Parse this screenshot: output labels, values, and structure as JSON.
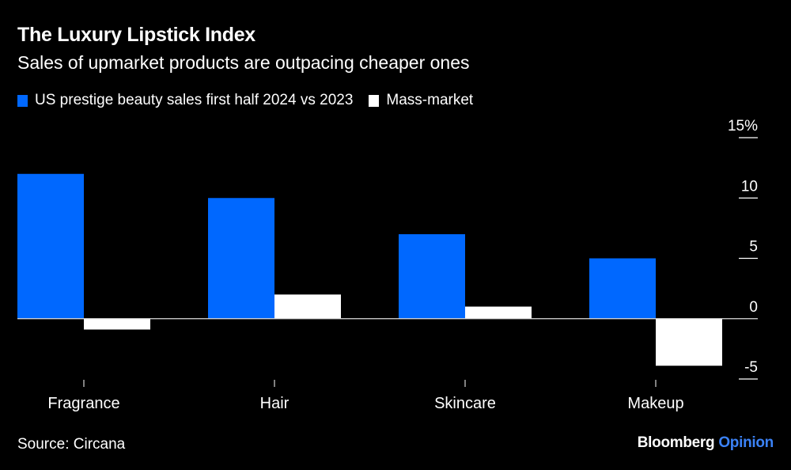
{
  "header": {
    "title": "The Luxury Lipstick Index",
    "subtitle": "Sales of upmarket products are outpacing cheaper ones"
  },
  "footer": {
    "source": "Source: Circana",
    "brand_main": "Bloomberg",
    "brand_accent": "Opinion",
    "brand_accent_color": "#3b82f6"
  },
  "chart_data": {
    "type": "bar",
    "title": "The Luxury Lipstick Index",
    "subtitle": "Sales of upmarket products are outpacing cheaper ones",
    "xlabel": "",
    "ylabel": "",
    "categories": [
      "Fragrance",
      "Hair",
      "Skincare",
      "Makeup"
    ],
    "series": [
      {
        "name": "US prestige beauty sales first half 2024 vs 2023",
        "color": "#0068ff",
        "values": [
          12.0,
          10.0,
          7.0,
          5.0
        ]
      },
      {
        "name": "Mass-market",
        "color": "#ffffff",
        "values": [
          -0.9,
          2.0,
          1.0,
          -3.9
        ]
      }
    ],
    "ylim": [
      -5,
      15
    ],
    "yticks": [
      15,
      10,
      5,
      0,
      -5
    ],
    "ytick_labels": [
      "15%",
      "10",
      "5",
      "0",
      "-5"
    ],
    "y_axis_side": "right",
    "grid": false,
    "legend_position": "top-left"
  }
}
